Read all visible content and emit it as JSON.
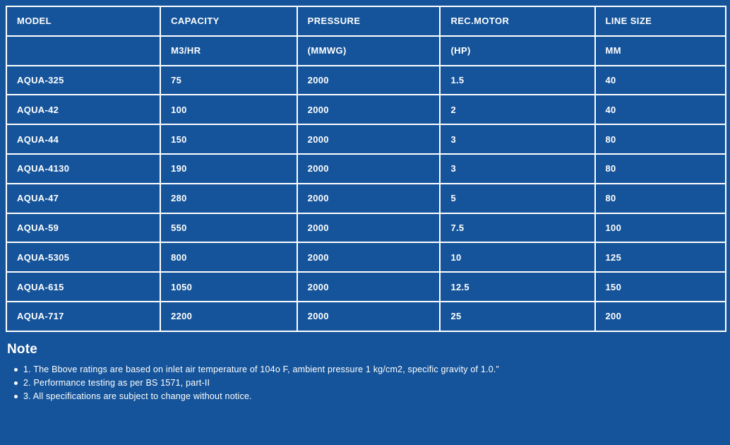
{
  "colors": {
    "background": "#15549A",
    "border": "#FFFFFF",
    "text": "#FFFFFF"
  },
  "table": {
    "columns": [
      {
        "header": "MODEL",
        "unit": "",
        "width": "21.4%"
      },
      {
        "header": "CAPACITY",
        "unit": "M3/HR",
        "width": "19.0%"
      },
      {
        "header": "PRESSURE",
        "unit": "(MMWG)",
        "width": "19.9%"
      },
      {
        "header": "REC.MOTOR",
        "unit": "(HP)",
        "width": "21.5%"
      },
      {
        "header": "LINE SIZE",
        "unit": "MM",
        "width": "18.2%"
      }
    ],
    "rows": [
      [
        "AQUA-325",
        "75",
        "2000",
        "1.5",
        "40"
      ],
      [
        "AQUA-42",
        "100",
        "2000",
        "2",
        "40"
      ],
      [
        "AQUA-44",
        "150",
        "2000",
        "3",
        "80"
      ],
      [
        "AQUA-4130",
        "190",
        "2000",
        "3",
        "80"
      ],
      [
        "AQUA-47",
        "280",
        "2000",
        "5",
        "80"
      ],
      [
        "AQUA-59",
        "550",
        "2000",
        "7.5",
        "100"
      ],
      [
        "AQUA-5305",
        "800",
        "2000",
        "10",
        "125"
      ],
      [
        "AQUA-615",
        "1050",
        "2000",
        "12.5",
        "150"
      ],
      [
        "AQUA-717",
        "2200",
        "2000",
        "25",
        "200"
      ]
    ]
  },
  "note": {
    "title": "Note",
    "items": [
      "1. The Bbove ratings are based on inlet air temperature of 104o F, ambient pressure 1 kg/cm2, specific gravity of 1.0.”",
      "2. Performance testing as per BS 1571, part-II",
      "3. All specifications are subject to change without notice."
    ]
  }
}
